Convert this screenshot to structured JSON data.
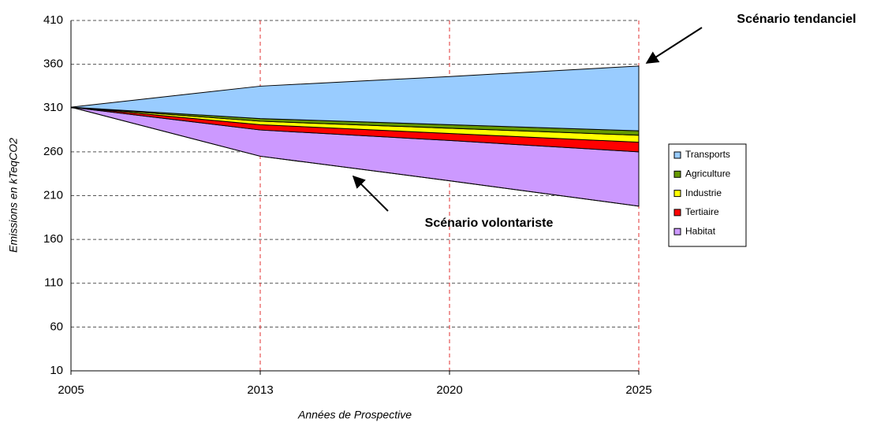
{
  "chart_data": {
    "type": "stacked_area",
    "categories": [
      "2005",
      "2013",
      "2020",
      "2025"
    ],
    "baseline": [
      311,
      255,
      227,
      198
    ],
    "series": [
      {
        "name": "Habitat",
        "color": "#cc99ff",
        "values": [
          0,
          30,
          46,
          62
        ]
      },
      {
        "name": "Tertiaire",
        "color": "#ff0000",
        "values": [
          0,
          6,
          8,
          11
        ]
      },
      {
        "name": "Industrie",
        "color": "#ffff00",
        "values": [
          0,
          4,
          6,
          8
        ]
      },
      {
        "name": "Agriculture",
        "color": "#669900",
        "values": [
          0,
          3,
          4,
          5
        ]
      },
      {
        "name": "Transports",
        "color": "#99ccff",
        "values": [
          0,
          37,
          55,
          74
        ]
      }
    ],
    "ylim": [
      10,
      410
    ],
    "yticks": [
      10,
      60,
      110,
      160,
      210,
      260,
      310,
      360,
      410
    ],
    "ylabel": "Emissions en kTeqCO2",
    "xlabel": "Années de Prospective",
    "annotations": [
      "Scénario tendanciel",
      "Scénario volontariste"
    ],
    "grid": true,
    "legend": "right"
  }
}
